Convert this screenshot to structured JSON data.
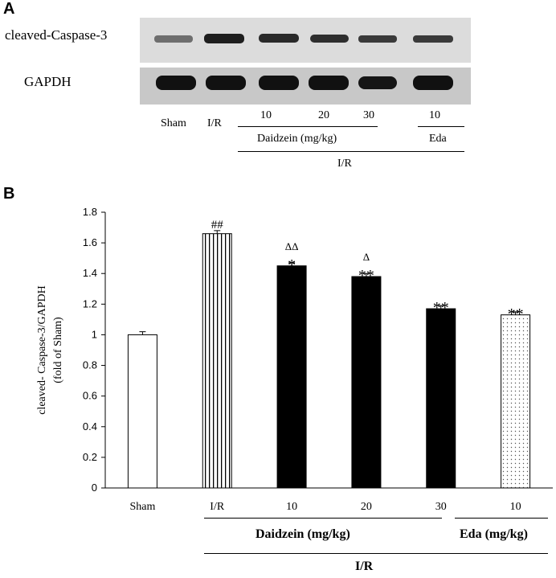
{
  "panel_a": {
    "letter": "A",
    "blot_labels": [
      "cleaved-Caspase-3",
      "GAPDH"
    ],
    "lanes": [
      "Sham",
      "I/R",
      "10",
      "20",
      "30",
      "10"
    ],
    "group_daidzein": "Daidzein (mg/kg)",
    "group_eda": "Eda",
    "group_ir": "I/R"
  },
  "panel_b": {
    "letter": "B",
    "group_daidzein": "Daidzein (mg/kg)",
    "group_eda": "Eda (mg/kg)",
    "group_ir": "I/R"
  },
  "chart_data": {
    "type": "bar",
    "categories": [
      "Sham",
      "I/R",
      "10",
      "20",
      "30",
      "10"
    ],
    "values": [
      1.0,
      1.66,
      1.45,
      1.38,
      1.17,
      1.13
    ],
    "errors": [
      0.02,
      0.02,
      0.02,
      0.02,
      0.02,
      0.02
    ],
    "fills": [
      "white",
      "vertical-stripes",
      "black",
      "black",
      "black",
      "dots"
    ],
    "annotations": [
      "",
      "##",
      "ΔΔ\n*",
      "Δ\n**",
      "**",
      "**"
    ],
    "ylabel": "cleaved- Caspase-3/GAPDH (fold of Sham)",
    "ylim": [
      0,
      1.8
    ],
    "yticks": [
      "0",
      "0.2",
      "0.4",
      "0.6",
      "0.8",
      "1",
      "1.2",
      "1.4",
      "1.6",
      "1.8"
    ],
    "grid": false
  }
}
